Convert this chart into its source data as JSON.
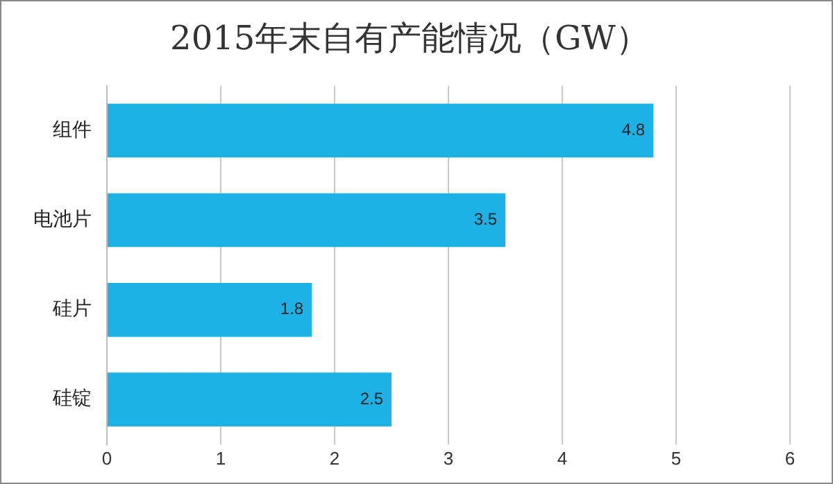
{
  "chart_data": {
    "type": "bar",
    "orientation": "horizontal",
    "title": "2015年末自有产能情况（GW）",
    "categories": [
      "组件",
      "电池片",
      "硅片",
      "硅锭"
    ],
    "values": [
      4.8,
      3.5,
      1.8,
      2.5
    ],
    "color": "#1eb1e6",
    "xlim": [
      0,
      6
    ],
    "xticks": [
      0,
      1,
      2,
      3,
      4,
      5,
      6
    ],
    "grid": "x",
    "data_labels": true
  }
}
